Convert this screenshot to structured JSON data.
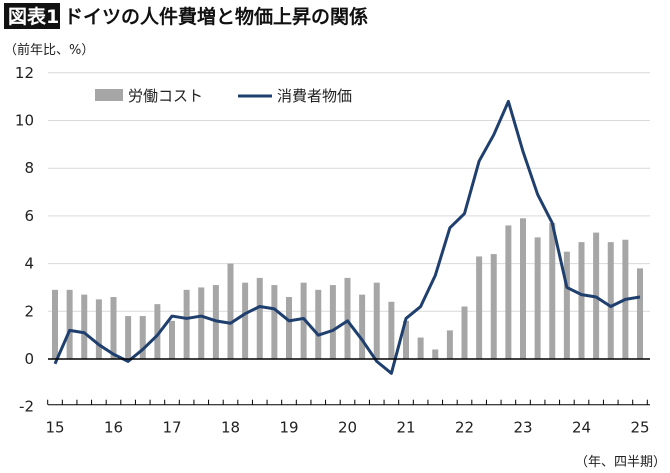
{
  "title": {
    "badge": "図表1",
    "text": "ドイツの人件費増と物価上昇の関係"
  },
  "colors": {
    "bars": "#a6a6a6",
    "line": "#1f3f6e",
    "grid": "#d9d9d9",
    "badge_bg": "#111111"
  },
  "chart_data": {
    "type": "bar+line",
    "ylabel": "（前年比、%）",
    "xlabel": "（年、四半期）",
    "ylim": [
      -2,
      12
    ],
    "yticks": [
      -2,
      0,
      2,
      4,
      6,
      8,
      10,
      12
    ],
    "xtick_labels": [
      "15",
      "16",
      "17",
      "18",
      "19",
      "20",
      "21",
      "22",
      "23",
      "24",
      "25"
    ],
    "grid": true,
    "legend_placement": "top-left",
    "x": [
      "2015Q1",
      "2015Q2",
      "2015Q3",
      "2015Q4",
      "2016Q1",
      "2016Q2",
      "2016Q3",
      "2016Q4",
      "2017Q1",
      "2017Q2",
      "2017Q3",
      "2017Q4",
      "2018Q1",
      "2018Q2",
      "2018Q3",
      "2018Q4",
      "2019Q1",
      "2019Q2",
      "2019Q3",
      "2019Q4",
      "2020Q1",
      "2020Q2",
      "2020Q3",
      "2020Q4",
      "2021Q1",
      "2021Q2",
      "2021Q3",
      "2021Q4",
      "2022Q1",
      "2022Q2",
      "2022Q3",
      "2022Q4",
      "2023Q1",
      "2023Q2",
      "2023Q3",
      "2023Q4",
      "2024Q1",
      "2024Q2",
      "2024Q3",
      "2024Q4",
      "2025Q1"
    ],
    "series": [
      {
        "name": "労働コスト",
        "type": "bar",
        "values": [
          2.9,
          2.9,
          2.7,
          2.5,
          2.6,
          1.8,
          1.8,
          2.3,
          1.6,
          2.9,
          3.0,
          3.1,
          4.0,
          3.2,
          3.4,
          3.1,
          2.6,
          3.2,
          2.9,
          3.1,
          3.4,
          2.7,
          3.2,
          2.4,
          1.6,
          0.9,
          0.4,
          1.2,
          2.2,
          4.3,
          4.4,
          5.6,
          5.9,
          5.1,
          5.7,
          4.5,
          4.9,
          5.3,
          4.9,
          5.0,
          3.8
        ]
      },
      {
        "name": "消費者物価",
        "type": "line",
        "values": [
          -0.2,
          1.2,
          1.1,
          0.6,
          0.2,
          -0.1,
          0.4,
          1.0,
          1.8,
          1.7,
          1.8,
          1.6,
          1.5,
          1.9,
          2.2,
          2.1,
          1.6,
          1.7,
          1.0,
          1.2,
          1.6,
          0.8,
          -0.1,
          -0.6,
          1.7,
          2.2,
          3.5,
          5.5,
          6.1,
          8.3,
          9.4,
          10.8,
          8.7,
          6.9,
          5.7,
          3.0,
          2.7,
          2.6,
          2.2,
          2.5,
          2.6
        ]
      }
    ]
  }
}
